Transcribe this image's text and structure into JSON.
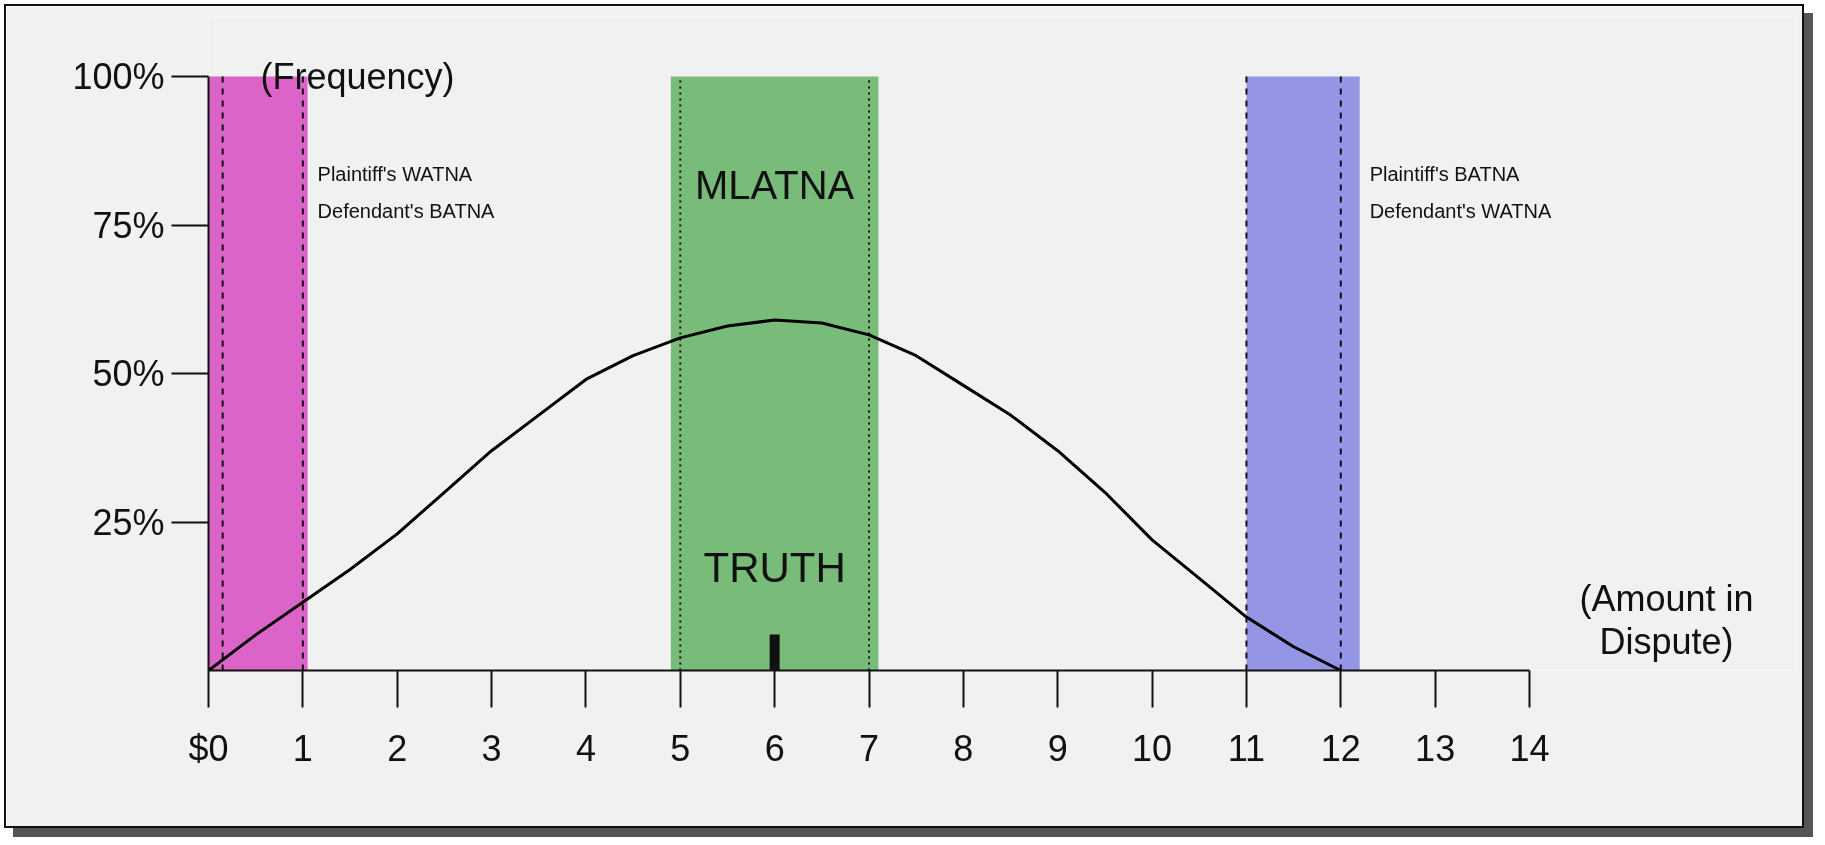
{
  "chart_data": {
    "type": "line",
    "xlabel": "(Amount in\nDispute)",
    "ylabel": "(Frequency)",
    "x": [
      0,
      0.5,
      1,
      1.5,
      2,
      2.5,
      3,
      3.5,
      4,
      4.5,
      5,
      5.5,
      6,
      6.5,
      7,
      7.5,
      8,
      8.5,
      9,
      9.5,
      10,
      10.5,
      11,
      11.5,
      12
    ],
    "series": [
      {
        "color": "#000000",
        "values": [
          0,
          6,
          11.5,
          17,
          23,
          30,
          37,
          43,
          49,
          53,
          56,
          58,
          59,
          58.5,
          56.5,
          53,
          48,
          43,
          37,
          30,
          22,
          15.5,
          9,
          4,
          0
        ]
      }
    ],
    "xlim": [
      0,
      14
    ],
    "ylim": [
      0,
      100
    ],
    "xticks": [
      {
        "value": 0,
        "label": "$0"
      },
      1,
      2,
      3,
      4,
      5,
      6,
      7,
      8,
      9,
      10,
      11,
      12,
      13,
      14
    ],
    "yticks": [
      {
        "value": 25,
        "label": "25%"
      },
      {
        "value": 50,
        "label": "50%"
      },
      {
        "value": 75,
        "label": "75%"
      },
      {
        "value": 100,
        "label": "100%"
      }
    ],
    "bands": [
      {
        "axis": "x",
        "from": 0,
        "to": 1.05,
        "label": "Plaintiff's WATNA\nDefendant's BATNA",
        "color": "#dc64c8"
      },
      {
        "axis": "x",
        "from": 4.9,
        "to": 7.1,
        "label": "MLATNA",
        "color": "#79bb79"
      },
      {
        "axis": "x",
        "from": 11,
        "to": 12.2,
        "label": "Plaintiff's BATNA\nDefendant's WATNA",
        "color": "#9595e6"
      }
    ],
    "ref_lines": [
      {
        "axis": "x",
        "value": 0.15,
        "line_style": "dashed"
      },
      {
        "axis": "x",
        "value": 1,
        "line_style": "dashed"
      },
      {
        "axis": "x",
        "value": 5,
        "line_style": "dotted"
      },
      {
        "axis": "x",
        "value": 7,
        "line_style": "dotted"
      },
      {
        "axis": "x",
        "value": 11,
        "line_style": "dashed"
      },
      {
        "axis": "x",
        "value": 12,
        "line_style": "dashed"
      },
      {
        "axis": "x",
        "value": 6,
        "label": "TRUTH",
        "line_style": "solid"
      }
    ]
  }
}
